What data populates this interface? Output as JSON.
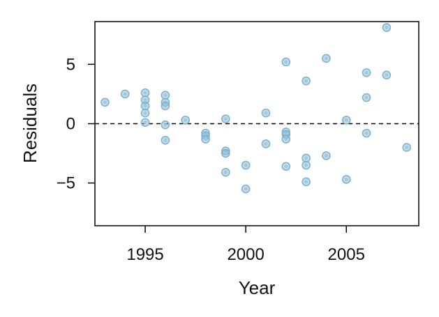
{
  "chart_data": {
    "type": "scatter",
    "title": "",
    "xlabel": "Year",
    "ylabel": "Residuals",
    "xlim": [
      1992.5,
      2008.6
    ],
    "ylim": [
      -8.6,
      8.6
    ],
    "xticks": [
      1995,
      2000,
      2005
    ],
    "xtick_labels": [
      "1995",
      "2000",
      "2005"
    ],
    "yticks": [
      -5,
      0,
      5
    ],
    "ytick_labels": [
      "−5",
      "0",
      "5"
    ],
    "reference_line": {
      "y": 0,
      "style": "dashed"
    },
    "grid": false,
    "point_color": "#7fb3cf",
    "points": [
      {
        "x": 1993,
        "y": 1.8
      },
      {
        "x": 1994,
        "y": 2.5
      },
      {
        "x": 1995,
        "y": 2.6
      },
      {
        "x": 1995,
        "y": 2.0
      },
      {
        "x": 1995,
        "y": 1.5
      },
      {
        "x": 1995,
        "y": 0.9
      },
      {
        "x": 1995,
        "y": 0.1
      },
      {
        "x": 1996,
        "y": 2.4
      },
      {
        "x": 1996,
        "y": 1.8
      },
      {
        "x": 1996,
        "y": 1.5
      },
      {
        "x": 1996,
        "y": -0.1
      },
      {
        "x": 1996,
        "y": -1.4
      },
      {
        "x": 1997,
        "y": 0.3
      },
      {
        "x": 1998,
        "y": -0.8
      },
      {
        "x": 1998,
        "y": -1.0
      },
      {
        "x": 1998,
        "y": -1.3
      },
      {
        "x": 1999,
        "y": 0.4
      },
      {
        "x": 1999,
        "y": -2.3
      },
      {
        "x": 1999,
        "y": -2.5
      },
      {
        "x": 1999,
        "y": -4.1
      },
      {
        "x": 2000,
        "y": -3.5
      },
      {
        "x": 2000,
        "y": -5.5
      },
      {
        "x": 2001,
        "y": 0.9
      },
      {
        "x": 2001,
        "y": -1.7
      },
      {
        "x": 2002,
        "y": 5.2
      },
      {
        "x": 2002,
        "y": -0.7
      },
      {
        "x": 2002,
        "y": -0.9
      },
      {
        "x": 2002,
        "y": -1.3
      },
      {
        "x": 2002,
        "y": -3.6
      },
      {
        "x": 2003,
        "y": 3.6
      },
      {
        "x": 2003,
        "y": -2.9
      },
      {
        "x": 2003,
        "y": -3.5
      },
      {
        "x": 2003,
        "y": -4.9
      },
      {
        "x": 2004,
        "y": 5.5
      },
      {
        "x": 2004,
        "y": -2.7
      },
      {
        "x": 2005,
        "y": 0.3
      },
      {
        "x": 2005,
        "y": -4.7
      },
      {
        "x": 2006,
        "y": 4.3
      },
      {
        "x": 2006,
        "y": 2.2
      },
      {
        "x": 2006,
        "y": -0.8
      },
      {
        "x": 2007,
        "y": 8.1
      },
      {
        "x": 2007,
        "y": 4.1
      },
      {
        "x": 2008,
        "y": -2.0
      }
    ]
  }
}
